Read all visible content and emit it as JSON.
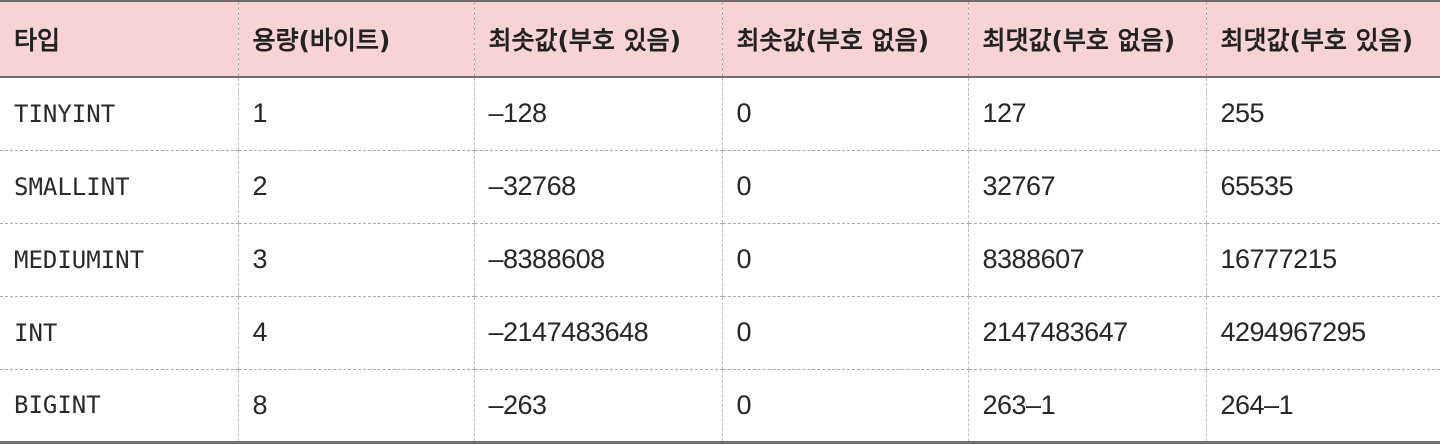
{
  "table": {
    "headers": [
      "타입",
      "용량(바이트)",
      "최솟값(부호 있음)",
      "최솟값(부호 없음)",
      "최댓값(부호 없음)",
      "최댓값(부호 있음)"
    ],
    "rows": [
      [
        "TINYINT",
        "1",
        "–128",
        "0",
        "127",
        "255"
      ],
      [
        "SMALLINT",
        "2",
        "–32768",
        "0",
        "32767",
        "65535"
      ],
      [
        "MEDIUMINT",
        "3",
        "–8388608",
        "0",
        "8388607",
        "16777215"
      ],
      [
        "INT",
        "4",
        "–2147483648",
        "0",
        "2147483647",
        "4294967295"
      ],
      [
        "BIGINT",
        "8",
        "–263",
        "0",
        "263–1",
        "264–1"
      ]
    ]
  },
  "colors": {
    "header_background": "#f7d3d6",
    "text": "#262626",
    "rule": "#6f6f6f"
  }
}
